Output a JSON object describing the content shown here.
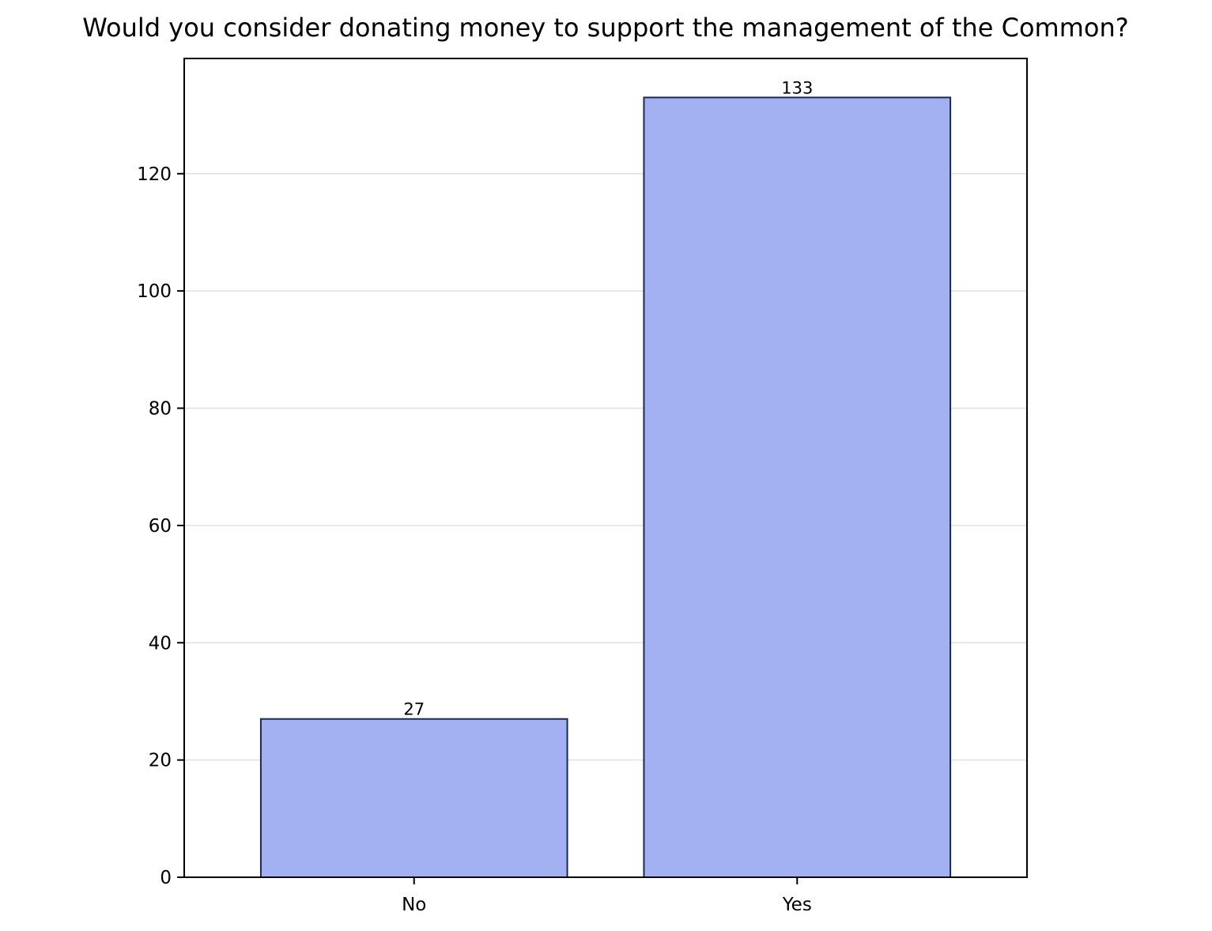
{
  "chart_data": {
    "type": "bar",
    "title": "Would you consider donating money to support the management of the Common?",
    "xlabel": "",
    "ylabel": "",
    "categories": [
      "No",
      "Yes"
    ],
    "values": [
      27,
      133
    ],
    "data_labels": [
      "27",
      "133"
    ],
    "ylim": [
      0,
      139.65
    ],
    "yticks": [
      0,
      20,
      40,
      60,
      80,
      100,
      120
    ],
    "ytick_labels": [
      "0",
      "20",
      "40",
      "60",
      "80",
      "100",
      "120"
    ],
    "grid": "horizontal",
    "legend": "none",
    "colors": {
      "bar_fill": "#a3b1f3",
      "bar_edge": "#1a2a4a",
      "grid": "#e0e0e0",
      "axis": "#000000"
    }
  }
}
